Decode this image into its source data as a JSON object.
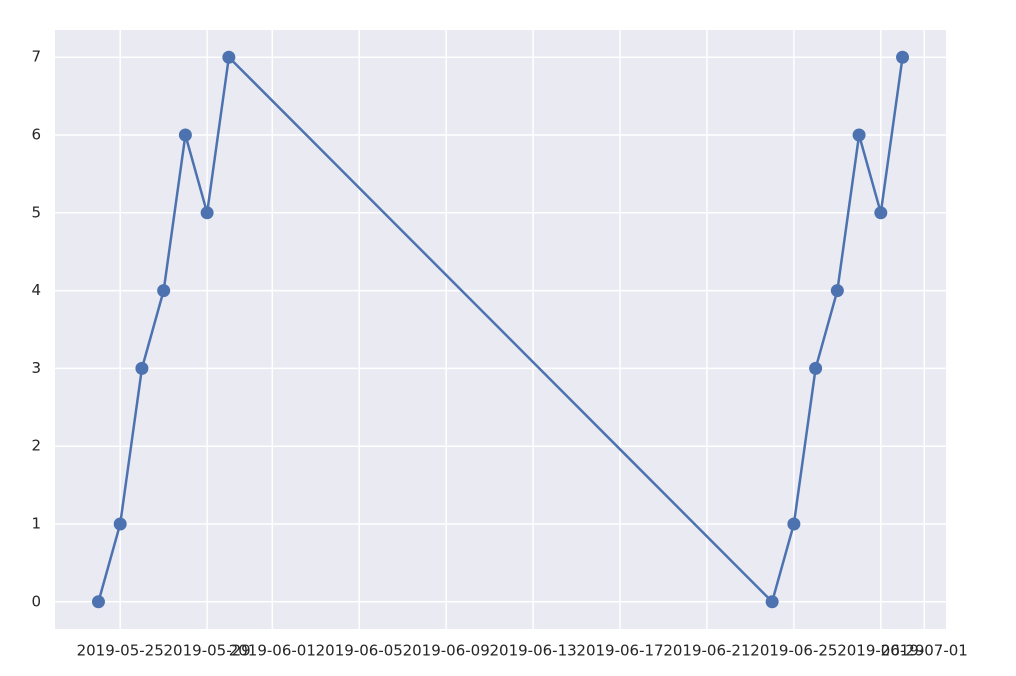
{
  "chart_data": {
    "type": "line",
    "x": [
      "2019-05-24",
      "2019-05-25",
      "2019-05-26",
      "2019-05-27",
      "2019-05-28",
      "2019-05-29",
      "2019-05-30",
      "2019-06-24",
      "2019-06-25",
      "2019-06-26",
      "2019-06-27",
      "2019-06-28",
      "2019-06-29",
      "2019-06-30"
    ],
    "series": [
      {
        "color": "#4c72b0",
        "values": [
          0,
          1,
          3,
          4,
          6,
          5,
          7,
          0,
          1,
          3,
          4,
          6,
          5,
          7
        ]
      }
    ],
    "xlim": [
      "2019-05-22",
      "2019-07-02"
    ],
    "xticks": [
      "2019-05-25",
      "2019-05-29",
      "2019-06-01",
      "2019-06-05",
      "2019-06-09",
      "2019-06-13",
      "2019-06-17",
      "2019-06-21",
      "2019-06-25",
      "2019-06-29",
      "2019-07-01"
    ],
    "ylim": [
      -0.35,
      7.35
    ],
    "yticks": [
      0,
      1,
      2,
      3,
      4,
      5,
      6,
      7
    ],
    "grid": true,
    "background": "#eaeaf2",
    "marker": "o"
  }
}
